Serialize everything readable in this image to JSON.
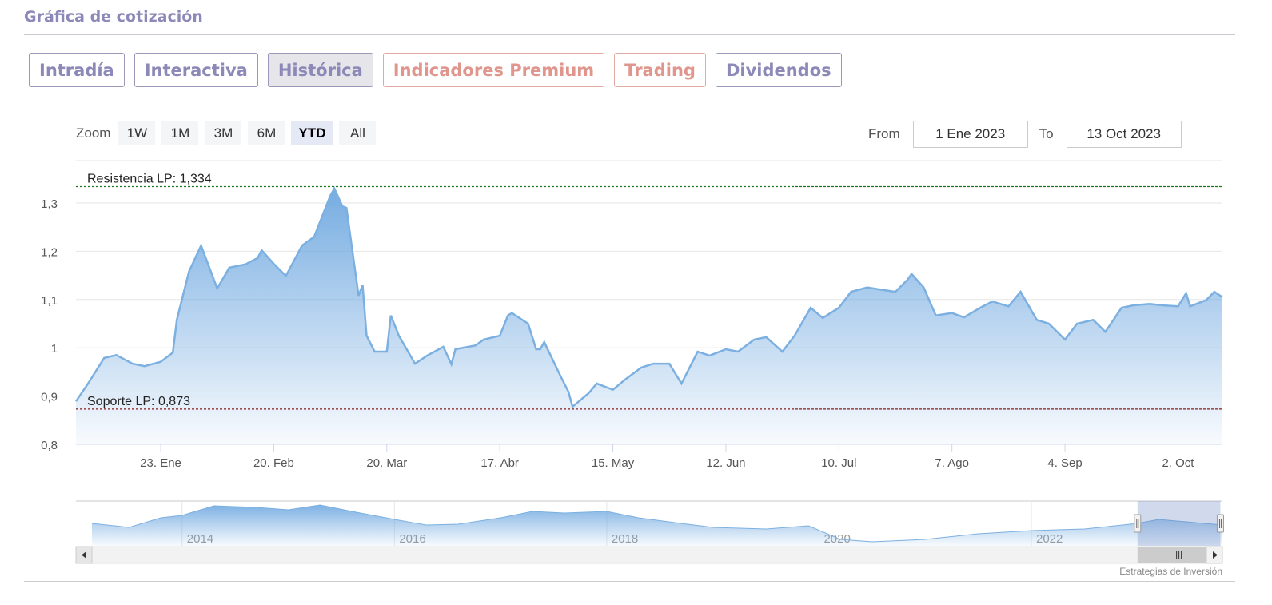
{
  "title": "Gráfica de cotización",
  "tabs": [
    {
      "label": "Intradía",
      "style": "purple"
    },
    {
      "label": "Interactiva",
      "style": "purple"
    },
    {
      "label": "Histórica",
      "style": "purple",
      "active": true
    },
    {
      "label": "Indicadores Premium",
      "style": "red"
    },
    {
      "label": "Trading",
      "style": "red"
    },
    {
      "label": "Dividendos",
      "style": "purple"
    }
  ],
  "zoom": {
    "label": "Zoom",
    "buttons": [
      "1W",
      "1M",
      "3M",
      "6M",
      "YTD",
      "All"
    ],
    "selected": "YTD"
  },
  "range": {
    "from_label": "From",
    "from_value": "1 Ene 2023",
    "to_label": "To",
    "to_value": "13 Oct 2023"
  },
  "credit": "Estrategias de Inversión",
  "colors": {
    "accent": "#8c88b8",
    "premium": "#e0958d",
    "series": "#7cb0e0",
    "resistance": "#1a7a1a",
    "support": "#8b1a1a"
  },
  "chart_data": {
    "type": "area",
    "xlim": [
      "2023-01-02",
      "2023-10-13"
    ],
    "ylim": [
      0.8,
      1.4
    ],
    "yticks": [
      0.8,
      0.9,
      1,
      1.1,
      1.2,
      1.3
    ],
    "ytick_labels": [
      "0,8",
      "0,9",
      "1",
      "1,1",
      "1,2",
      "1,3"
    ],
    "xticks": [
      {
        "date": "2023-01-23",
        "label": "23. Ene"
      },
      {
        "date": "2023-02-20",
        "label": "20. Feb"
      },
      {
        "date": "2023-03-20",
        "label": "20. Mar"
      },
      {
        "date": "2023-04-17",
        "label": "17. Abr"
      },
      {
        "date": "2023-05-15",
        "label": "15. May"
      },
      {
        "date": "2023-06-12",
        "label": "12. Jun"
      },
      {
        "date": "2023-07-10",
        "label": "10. Jul"
      },
      {
        "date": "2023-08-07",
        "label": "7. Ago"
      },
      {
        "date": "2023-09-04",
        "label": "4. Sep"
      },
      {
        "date": "2023-10-02",
        "label": "2. Oct"
      }
    ],
    "grid": true,
    "plot_lines": [
      {
        "label": "Resistencia LP: 1,334",
        "value": 1.334,
        "color": "#1a7a1a"
      },
      {
        "label": "Soporte LP: 0,873",
        "value": 0.873,
        "color": "#8b1a1a"
      }
    ],
    "series": [
      {
        "points": [
          [
            "2023-01-02",
            0.889
          ],
          [
            "2023-01-05",
            0.926
          ],
          [
            "2023-01-09",
            0.979
          ],
          [
            "2023-01-12",
            0.985
          ],
          [
            "2023-01-16",
            0.967
          ],
          [
            "2023-01-19",
            0.962
          ],
          [
            "2023-01-23",
            0.971
          ],
          [
            "2023-01-26",
            0.99
          ],
          [
            "2023-01-27",
            1.058
          ],
          [
            "2023-01-30",
            1.158
          ],
          [
            "2023-02-02",
            1.212
          ],
          [
            "2023-02-06",
            1.123
          ],
          [
            "2023-02-09",
            1.166
          ],
          [
            "2023-02-13",
            1.173
          ],
          [
            "2023-02-16",
            1.186
          ],
          [
            "2023-02-17",
            1.202
          ],
          [
            "2023-02-20",
            1.174
          ],
          [
            "2023-02-23",
            1.149
          ],
          [
            "2023-02-27",
            1.212
          ],
          [
            "2023-03-02",
            1.23
          ],
          [
            "2023-03-06",
            1.315
          ],
          [
            "2023-03-07",
            1.33
          ],
          [
            "2023-03-09",
            1.293
          ],
          [
            "2023-03-10",
            1.29
          ],
          [
            "2023-03-13",
            1.108
          ],
          [
            "2023-03-14",
            1.13
          ],
          [
            "2023-03-15",
            1.025
          ],
          [
            "2023-03-17",
            0.992
          ],
          [
            "2023-03-20",
            0.992
          ],
          [
            "2023-03-21",
            1.067
          ],
          [
            "2023-03-23",
            1.025
          ],
          [
            "2023-03-27",
            0.967
          ],
          [
            "2023-03-30",
            0.984
          ],
          [
            "2023-04-03",
            1.002
          ],
          [
            "2023-04-05",
            0.966
          ],
          [
            "2023-04-06",
            0.997
          ],
          [
            "2023-04-11",
            1.005
          ],
          [
            "2023-04-13",
            1.017
          ],
          [
            "2023-04-17",
            1.025
          ],
          [
            "2023-04-19",
            1.067
          ],
          [
            "2023-04-20",
            1.072
          ],
          [
            "2023-04-24",
            1.05
          ],
          [
            "2023-04-26",
            0.997
          ],
          [
            "2023-04-27",
            0.997
          ],
          [
            "2023-04-28",
            1.012
          ],
          [
            "2023-05-02",
            0.942
          ],
          [
            "2023-05-04",
            0.909
          ],
          [
            "2023-05-05",
            0.878
          ],
          [
            "2023-05-09",
            0.906
          ],
          [
            "2023-05-11",
            0.926
          ],
          [
            "2023-05-15",
            0.913
          ],
          [
            "2023-05-18",
            0.934
          ],
          [
            "2023-05-22",
            0.959
          ],
          [
            "2023-05-25",
            0.967
          ],
          [
            "2023-05-29",
            0.967
          ],
          [
            "2023-06-01",
            0.926
          ],
          [
            "2023-06-05",
            0.992
          ],
          [
            "2023-06-08",
            0.984
          ],
          [
            "2023-06-12",
            0.997
          ],
          [
            "2023-06-15",
            0.992
          ],
          [
            "2023-06-19",
            1.017
          ],
          [
            "2023-06-22",
            1.022
          ],
          [
            "2023-06-26",
            0.992
          ],
          [
            "2023-06-29",
            1.025
          ],
          [
            "2023-07-03",
            1.083
          ],
          [
            "2023-07-06",
            1.062
          ],
          [
            "2023-07-10",
            1.083
          ],
          [
            "2023-07-13",
            1.116
          ],
          [
            "2023-07-17",
            1.125
          ],
          [
            "2023-07-20",
            1.121
          ],
          [
            "2023-07-24",
            1.116
          ],
          [
            "2023-07-27",
            1.141
          ],
          [
            "2023-07-28",
            1.153
          ],
          [
            "2023-07-31",
            1.125
          ],
          [
            "2023-08-03",
            1.067
          ],
          [
            "2023-08-07",
            1.072
          ],
          [
            "2023-08-10",
            1.063
          ],
          [
            "2023-08-14",
            1.083
          ],
          [
            "2023-08-17",
            1.096
          ],
          [
            "2023-08-21",
            1.086
          ],
          [
            "2023-08-24",
            1.116
          ],
          [
            "2023-08-28",
            1.058
          ],
          [
            "2023-08-31",
            1.05
          ],
          [
            "2023-09-04",
            1.017
          ],
          [
            "2023-09-07",
            1.05
          ],
          [
            "2023-09-11",
            1.058
          ],
          [
            "2023-09-14",
            1.033
          ],
          [
            "2023-09-18",
            1.083
          ],
          [
            "2023-09-21",
            1.088
          ],
          [
            "2023-09-25",
            1.091
          ],
          [
            "2023-09-28",
            1.088
          ],
          [
            "2023-10-02",
            1.086
          ],
          [
            "2023-10-04",
            1.113
          ],
          [
            "2023-10-05",
            1.086
          ],
          [
            "2023-10-09",
            1.099
          ],
          [
            "2023-10-11",
            1.116
          ],
          [
            "2023-10-13",
            1.105
          ]
        ]
      }
    ],
    "navigator": {
      "xlim": [
        2013.0,
        2023.8
      ],
      "year_labels": [
        "2014",
        "2016",
        "2018",
        "2020",
        "2022"
      ],
      "selected": [
        "2023-01-01",
        "2023-10-13"
      ],
      "points": [
        [
          2013.15,
          1.05
        ],
        [
          2013.5,
          0.85
        ],
        [
          2013.8,
          1.33
        ],
        [
          2014.0,
          1.45
        ],
        [
          2014.3,
          1.93
        ],
        [
          2014.7,
          1.85
        ],
        [
          2015.0,
          1.73
        ],
        [
          2015.3,
          1.97
        ],
        [
          2015.6,
          1.65
        ],
        [
          2016.0,
          1.25
        ],
        [
          2016.3,
          0.97
        ],
        [
          2016.6,
          1.01
        ],
        [
          2017.0,
          1.33
        ],
        [
          2017.3,
          1.65
        ],
        [
          2017.6,
          1.57
        ],
        [
          2018.0,
          1.65
        ],
        [
          2018.3,
          1.33
        ],
        [
          2018.7,
          1.05
        ],
        [
          2019.0,
          0.85
        ],
        [
          2019.5,
          0.77
        ],
        [
          2019.9,
          0.93
        ],
        [
          2020.2,
          0.25
        ],
        [
          2020.5,
          0.13
        ],
        [
          2021.0,
          0.25
        ],
        [
          2021.5,
          0.53
        ],
        [
          2022.0,
          0.69
        ],
        [
          2022.5,
          0.77
        ],
        [
          2023.0,
          1.05
        ],
        [
          2023.2,
          1.25
        ],
        [
          2023.8,
          0.97
        ]
      ]
    }
  }
}
